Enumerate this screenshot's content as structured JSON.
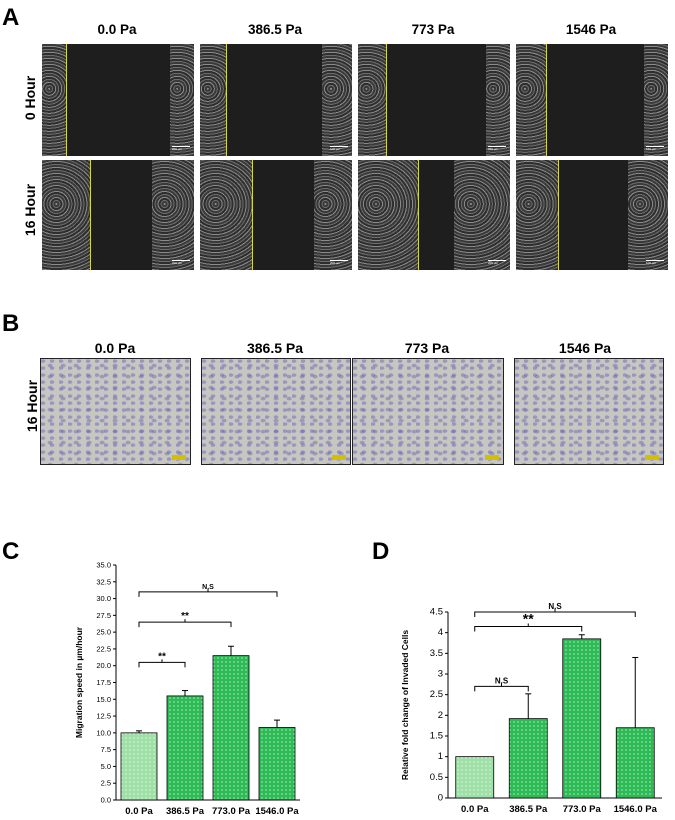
{
  "panel_a": {
    "letter": "A",
    "columns": [
      "0.0 Pa",
      "386.5 Pa",
      "773 Pa",
      "1546 Pa"
    ],
    "rows": [
      "0 Hour",
      "16 Hour"
    ],
    "scale_labels": [
      "200 µm",
      "100 µm",
      "200 µm",
      "100 µm",
      "200 µm",
      "200 µm",
      "200 µm",
      "100 µm"
    ]
  },
  "panel_b": {
    "letter": "B",
    "columns": [
      "0.0 Pa",
      "386.5 Pa",
      "773 Pa",
      "1546 Pa"
    ],
    "row": "16 Hour"
  },
  "chart_data": [
    {
      "panel": "C",
      "type": "bar",
      "categories": [
        "0.0 Pa",
        "386.5 Pa",
        "773.0 Pa",
        "1546.0 Pa"
      ],
      "values": [
        10.0,
        15.5,
        21.5,
        10.8
      ],
      "errors": [
        0.3,
        0.8,
        1.4,
        1.1
      ],
      "ylabel": "Migration speed in µm/hour",
      "xlabel": "",
      "ylim": [
        0,
        35
      ],
      "yticks": [
        "0.0",
        "2.5",
        "5.0",
        "7.5",
        "10.0",
        "12.5",
        "15.0",
        "17.5",
        "20.0",
        "22.5",
        "25.0",
        "27.5",
        "30.0",
        "32.5",
        "35.0"
      ],
      "colors": [
        "#9fe0a6",
        "#2dbb55",
        "#2dbb55",
        "#2dbb55"
      ],
      "significance": [
        {
          "from": 0,
          "to": 1,
          "label": "**",
          "level": 20.5
        },
        {
          "from": 0,
          "to": 2,
          "label": "**",
          "level": 26.5
        },
        {
          "from": 0,
          "to": 3,
          "label": "N.S",
          "level": 31.0
        }
      ]
    },
    {
      "panel": "D",
      "type": "bar",
      "categories": [
        "0.0 Pa",
        "386.5 Pa",
        "773.0 Pa",
        "1546.0 Pa"
      ],
      "values": [
        1.0,
        1.92,
        3.85,
        1.7
      ],
      "errors": [
        0.0,
        0.6,
        0.1,
        1.7
      ],
      "ylabel": "Relative fold change of Invaded Cells",
      "xlabel": "",
      "ylim": [
        0,
        4.5
      ],
      "yticks": [
        "0",
        "0.5",
        "1",
        "1.5",
        "2",
        "2.5",
        "3",
        "3.5",
        "4",
        "4.5"
      ],
      "colors": [
        "#9fe0a6",
        "#2dbb55",
        "#2dbb55",
        "#2dbb55"
      ],
      "significance": [
        {
          "from": 0,
          "to": 1,
          "label": "N.S",
          "level": 2.7
        },
        {
          "from": 0,
          "to": 2,
          "label": "**",
          "level": 4.15
        },
        {
          "from": 0,
          "to": 3,
          "label": "N.S",
          "level": 4.5
        }
      ]
    }
  ]
}
